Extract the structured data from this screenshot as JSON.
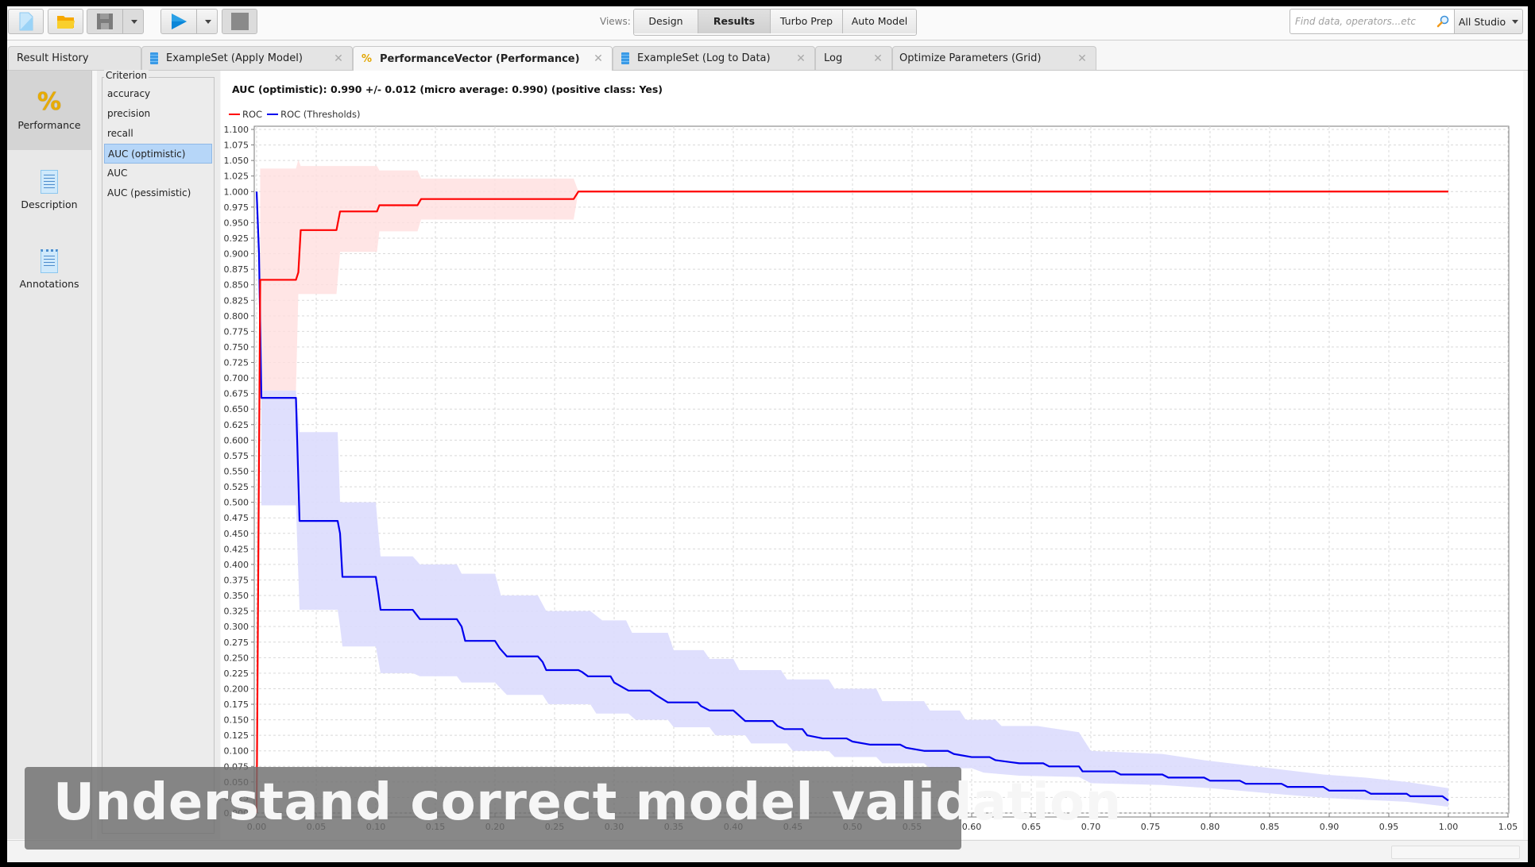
{
  "toolbar": {
    "buttons": [
      {
        "name": "new-process",
        "icon": "new-file-icon"
      },
      {
        "name": "open-process",
        "icon": "folder-icon"
      },
      {
        "name": "save-process",
        "icon": "floppy-disk-icon",
        "disabled": true
      },
      {
        "name": "run-process",
        "icon": "play-icon"
      },
      {
        "name": "stop-process",
        "icon": "stop-icon",
        "disabled": true
      }
    ],
    "views_label": "Views:",
    "views": [
      {
        "label": "Design",
        "active": false
      },
      {
        "label": "Results",
        "active": true
      },
      {
        "label": "Turbo Prep",
        "active": false
      },
      {
        "label": "Auto Model",
        "active": false
      }
    ],
    "search_placeholder": "Find data, operators...etc",
    "scope_label": "All Studio"
  },
  "tabs": [
    {
      "label": "Result History",
      "icon": "none",
      "closable": false,
      "active": false
    },
    {
      "label": "ExampleSet (Apply Model)",
      "icon": "dataset-icon",
      "closable": true,
      "active": false
    },
    {
      "label": "PerformanceVector (Performance)",
      "icon": "percent-icon",
      "closable": true,
      "active": true
    },
    {
      "label": "ExampleSet (Log to Data)",
      "icon": "dataset-icon",
      "closable": true,
      "active": false
    },
    {
      "label": "Log",
      "icon": "none",
      "closable": true,
      "active": false
    },
    {
      "label": "Optimize Parameters (Grid)",
      "icon": "none",
      "closable": true,
      "active": false
    }
  ],
  "leftnav": [
    {
      "label": "Performance",
      "icon": "percent-icon",
      "active": true
    },
    {
      "label": "Description",
      "icon": "document-icon",
      "active": false
    },
    {
      "label": "Annotations",
      "icon": "notepad-icon",
      "active": false
    }
  ],
  "criterion": {
    "legend": "Criterion",
    "items": [
      {
        "label": "accuracy",
        "selected": false
      },
      {
        "label": "precision",
        "selected": false
      },
      {
        "label": "recall",
        "selected": false
      },
      {
        "label": "AUC (optimistic)",
        "selected": true
      },
      {
        "label": "AUC",
        "selected": false
      },
      {
        "label": "AUC (pessimistic)",
        "selected": false
      }
    ]
  },
  "main": {
    "title": "AUC (optimistic): 0.990 +/- 0.012 (micro average: 0.990) (positive class: Yes)"
  },
  "colors": {
    "roc": "#ff0000",
    "roc_band": "#ffdede",
    "thresholds": "#0000ee",
    "thresholds_band": "#dcdcfd",
    "overlap_band": "#e2c4e2",
    "selection": "#b6d6f8"
  },
  "caption": "Understand correct model validation",
  "chart_data": {
    "type": "line",
    "title": "AUC (optimistic): 0.990 +/- 0.012 (micro average: 0.990) (positive class: Yes)",
    "xlabel": "",
    "ylabel": "",
    "xlim": [
      0.0,
      1.05
    ],
    "ylim": [
      0.0,
      1.1
    ],
    "x_ticks": [
      "0.00",
      "0.05",
      "0.10",
      "0.15",
      "0.20",
      "0.25",
      "0.30",
      "0.35",
      "0.40",
      "0.45",
      "0.50",
      "0.55",
      "0.60",
      "0.65",
      "0.70",
      "0.75",
      "0.80",
      "0.85",
      "0.90",
      "0.95",
      "1.00",
      "1.05"
    ],
    "y_ticks": [
      "0.000",
      "0.025",
      "0.050",
      "0.075",
      "0.100",
      "0.125",
      "0.150",
      "0.175",
      "0.200",
      "0.225",
      "0.250",
      "0.275",
      "0.300",
      "0.325",
      "0.350",
      "0.375",
      "0.400",
      "0.425",
      "0.450",
      "0.475",
      "0.500",
      "0.525",
      "0.550",
      "0.575",
      "0.600",
      "0.625",
      "0.650",
      "0.675",
      "0.700",
      "0.725",
      "0.750",
      "0.775",
      "0.800",
      "0.825",
      "0.850",
      "0.875",
      "0.900",
      "0.925",
      "0.950",
      "0.975",
      "1.000",
      "1.025",
      "1.050",
      "1.075",
      "1.100"
    ],
    "grid": true,
    "legend_position": "top-left",
    "series": [
      {
        "name": "ROC",
        "color": "#ff0000",
        "points": [
          [
            0.0,
            0.0
          ],
          [
            0.003,
            0.858
          ],
          [
            0.033,
            0.858
          ],
          [
            0.035,
            0.87
          ],
          [
            0.037,
            0.938
          ],
          [
            0.067,
            0.938
          ],
          [
            0.07,
            0.968
          ],
          [
            0.101,
            0.968
          ],
          [
            0.103,
            0.978
          ],
          [
            0.135,
            0.978
          ],
          [
            0.138,
            0.988
          ],
          [
            0.266,
            0.988
          ],
          [
            0.27,
            1.0
          ],
          [
            1.0,
            1.0
          ]
        ],
        "band_upper": [
          [
            0.003,
            1.037
          ],
          [
            0.033,
            1.037
          ],
          [
            0.035,
            1.051
          ],
          [
            0.037,
            1.041
          ],
          [
            0.101,
            1.041
          ],
          [
            0.103,
            1.034
          ],
          [
            0.135,
            1.034
          ],
          [
            0.138,
            1.021
          ],
          [
            0.266,
            1.021
          ],
          [
            0.27,
            1.0
          ]
        ],
        "band_lower": [
          [
            0.003,
            0.68
          ],
          [
            0.033,
            0.68
          ],
          [
            0.035,
            0.835
          ],
          [
            0.067,
            0.835
          ],
          [
            0.07,
            0.903
          ],
          [
            0.101,
            0.903
          ],
          [
            0.103,
            0.936
          ],
          [
            0.135,
            0.936
          ],
          [
            0.138,
            0.955
          ],
          [
            0.266,
            0.955
          ],
          [
            0.27,
            1.0
          ]
        ]
      },
      {
        "name": "ROC (Thresholds)",
        "color": "#0000ee",
        "points": [
          [
            0.0,
            1.0
          ],
          [
            0.002,
            0.9
          ],
          [
            0.004,
            0.668
          ],
          [
            0.033,
            0.668
          ],
          [
            0.036,
            0.47
          ],
          [
            0.068,
            0.47
          ],
          [
            0.07,
            0.45
          ],
          [
            0.072,
            0.38
          ],
          [
            0.1,
            0.38
          ],
          [
            0.102,
            0.355
          ],
          [
            0.104,
            0.327
          ],
          [
            0.131,
            0.327
          ],
          [
            0.137,
            0.312
          ],
          [
            0.168,
            0.312
          ],
          [
            0.172,
            0.3
          ],
          [
            0.175,
            0.277
          ],
          [
            0.2,
            0.277
          ],
          [
            0.204,
            0.265
          ],
          [
            0.21,
            0.252
          ],
          [
            0.236,
            0.252
          ],
          [
            0.24,
            0.243
          ],
          [
            0.243,
            0.23
          ],
          [
            0.27,
            0.23
          ],
          [
            0.273,
            0.227
          ],
          [
            0.278,
            0.22
          ],
          [
            0.297,
            0.22
          ],
          [
            0.3,
            0.21
          ],
          [
            0.312,
            0.197
          ],
          [
            0.33,
            0.197
          ],
          [
            0.335,
            0.19
          ],
          [
            0.345,
            0.178
          ],
          [
            0.37,
            0.178
          ],
          [
            0.373,
            0.172
          ],
          [
            0.38,
            0.165
          ],
          [
            0.4,
            0.165
          ],
          [
            0.403,
            0.16
          ],
          [
            0.41,
            0.148
          ],
          [
            0.433,
            0.148
          ],
          [
            0.437,
            0.14
          ],
          [
            0.443,
            0.135
          ],
          [
            0.458,
            0.135
          ],
          [
            0.462,
            0.125
          ],
          [
            0.475,
            0.12
          ],
          [
            0.495,
            0.12
          ],
          [
            0.5,
            0.115
          ],
          [
            0.515,
            0.11
          ],
          [
            0.54,
            0.11
          ],
          [
            0.545,
            0.105
          ],
          [
            0.56,
            0.1
          ],
          [
            0.58,
            0.1
          ],
          [
            0.585,
            0.095
          ],
          [
            0.6,
            0.09
          ],
          [
            0.615,
            0.09
          ],
          [
            0.62,
            0.085
          ],
          [
            0.64,
            0.08
          ],
          [
            0.66,
            0.08
          ],
          [
            0.665,
            0.075
          ],
          [
            0.69,
            0.075
          ],
          [
            0.693,
            0.067
          ],
          [
            0.72,
            0.067
          ],
          [
            0.725,
            0.062
          ],
          [
            0.76,
            0.062
          ],
          [
            0.765,
            0.057
          ],
          [
            0.795,
            0.057
          ],
          [
            0.8,
            0.052
          ],
          [
            0.825,
            0.052
          ],
          [
            0.83,
            0.047
          ],
          [
            0.86,
            0.047
          ],
          [
            0.865,
            0.042
          ],
          [
            0.895,
            0.042
          ],
          [
            0.9,
            0.036
          ],
          [
            0.93,
            0.036
          ],
          [
            0.935,
            0.031
          ],
          [
            0.965,
            0.031
          ],
          [
            0.968,
            0.027
          ],
          [
            0.995,
            0.027
          ],
          [
            1.0,
            0.02
          ]
        ],
        "band_upper": [
          [
            0.004,
            0.68
          ],
          [
            0.033,
            0.68
          ],
          [
            0.036,
            0.613
          ],
          [
            0.068,
            0.613
          ],
          [
            0.07,
            0.5
          ],
          [
            0.1,
            0.5
          ],
          [
            0.102,
            0.455
          ],
          [
            0.104,
            0.413
          ],
          [
            0.131,
            0.413
          ],
          [
            0.137,
            0.4
          ],
          [
            0.168,
            0.4
          ],
          [
            0.172,
            0.385
          ],
          [
            0.2,
            0.385
          ],
          [
            0.205,
            0.35
          ],
          [
            0.236,
            0.35
          ],
          [
            0.243,
            0.325
          ],
          [
            0.28,
            0.325
          ],
          [
            0.29,
            0.31
          ],
          [
            0.31,
            0.31
          ],
          [
            0.315,
            0.29
          ],
          [
            0.345,
            0.29
          ],
          [
            0.35,
            0.262
          ],
          [
            0.375,
            0.262
          ],
          [
            0.38,
            0.248
          ],
          [
            0.4,
            0.248
          ],
          [
            0.405,
            0.23
          ],
          [
            0.44,
            0.23
          ],
          [
            0.445,
            0.215
          ],
          [
            0.48,
            0.215
          ],
          [
            0.485,
            0.2
          ],
          [
            0.52,
            0.2
          ],
          [
            0.525,
            0.18
          ],
          [
            0.56,
            0.18
          ],
          [
            0.565,
            0.165
          ],
          [
            0.59,
            0.165
          ],
          [
            0.595,
            0.15
          ],
          [
            0.62,
            0.15
          ],
          [
            0.625,
            0.14
          ],
          [
            0.655,
            0.14
          ],
          [
            0.69,
            0.13
          ],
          [
            0.7,
            0.1
          ],
          [
            0.76,
            0.095
          ],
          [
            0.795,
            0.085
          ],
          [
            0.83,
            0.077
          ],
          [
            0.86,
            0.07
          ],
          [
            0.895,
            0.062
          ],
          [
            0.93,
            0.057
          ],
          [
            0.965,
            0.05
          ],
          [
            1.0,
            0.04
          ]
        ],
        "band_lower": [
          [
            0.004,
            0.495
          ],
          [
            0.033,
            0.495
          ],
          [
            0.036,
            0.327
          ],
          [
            0.068,
            0.327
          ],
          [
            0.07,
            0.3
          ],
          [
            0.072,
            0.268
          ],
          [
            0.1,
            0.268
          ],
          [
            0.104,
            0.225
          ],
          [
            0.131,
            0.225
          ],
          [
            0.137,
            0.22
          ],
          [
            0.168,
            0.22
          ],
          [
            0.172,
            0.21
          ],
          [
            0.2,
            0.21
          ],
          [
            0.21,
            0.19
          ],
          [
            0.24,
            0.19
          ],
          [
            0.245,
            0.175
          ],
          [
            0.28,
            0.175
          ],
          [
            0.285,
            0.16
          ],
          [
            0.312,
            0.16
          ],
          [
            0.318,
            0.15
          ],
          [
            0.345,
            0.15
          ],
          [
            0.35,
            0.138
          ],
          [
            0.38,
            0.138
          ],
          [
            0.385,
            0.125
          ],
          [
            0.41,
            0.125
          ],
          [
            0.415,
            0.112
          ],
          [
            0.445,
            0.112
          ],
          [
            0.45,
            0.1
          ],
          [
            0.48,
            0.1
          ],
          [
            0.485,
            0.09
          ],
          [
            0.52,
            0.09
          ],
          [
            0.525,
            0.08
          ],
          [
            0.56,
            0.08
          ],
          [
            0.565,
            0.072
          ],
          [
            0.6,
            0.072
          ],
          [
            0.61,
            0.065
          ],
          [
            0.64,
            0.06
          ],
          [
            0.69,
            0.058
          ],
          [
            0.7,
            0.048
          ],
          [
            0.76,
            0.045
          ],
          [
            0.8,
            0.04
          ],
          [
            0.86,
            0.03
          ],
          [
            0.9,
            0.024
          ],
          [
            0.965,
            0.018
          ],
          [
            1.0,
            0.01
          ]
        ]
      }
    ]
  }
}
